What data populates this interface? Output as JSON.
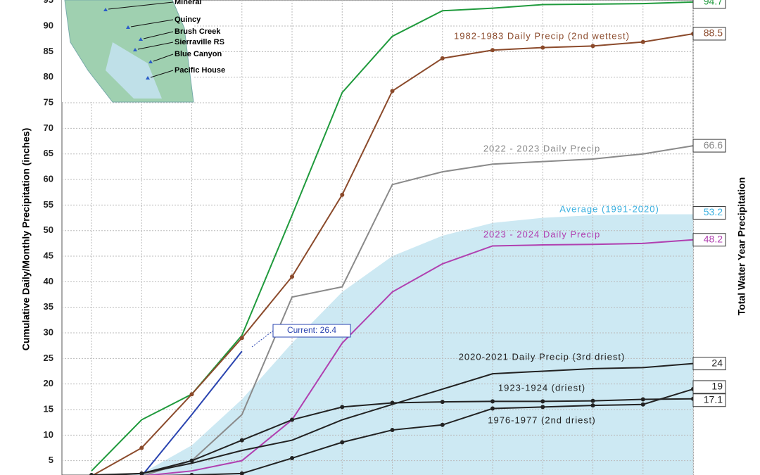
{
  "chart_data": {
    "type": "line",
    "y_label": "Cumulative Daily/Monthly Precipitation (inches)",
    "y2_label": "Total Water Year Precipitation",
    "x": [
      0,
      1,
      2,
      3,
      4,
      5,
      6,
      7,
      8,
      9,
      10,
      11,
      12
    ],
    "xlim": [
      -0.59,
      12
    ],
    "xticks": [
      0,
      1,
      2,
      3,
      4,
      5,
      6,
      7,
      8,
      9,
      10,
      11,
      12
    ],
    "ylim": [
      2.2,
      95.1
    ],
    "yticks": [
      5,
      10,
      15,
      20,
      25,
      30,
      35,
      40,
      45,
      50,
      55,
      60,
      65,
      70,
      75,
      80,
      85,
      90,
      95
    ],
    "grid": true,
    "area": {
      "name": "Average (1991-2020)",
      "color": "#3ab0e0",
      "fill": "#cde9f3",
      "values": [
        2,
        2.5,
        8,
        17,
        28,
        38,
        45,
        49,
        51.5,
        52.5,
        53,
        53.2,
        53.2
      ]
    },
    "series": [
      {
        "color": "#1f9a3c",
        "values": [
          3,
          13,
          18,
          29.5,
          53,
          77,
          88,
          93,
          93.5,
          94.2,
          94.3,
          94.4,
          94.7
        ]
      },
      {
        "name": "1982-1983 Daily Precip (2nd wettest)",
        "color": "#8b4a2b",
        "marker": true,
        "values": [
          2,
          7.5,
          18,
          29,
          41,
          57,
          77.3,
          83.7,
          85.3,
          85.8,
          86.1,
          86.9,
          88.5
        ]
      },
      {
        "name": "2022 - 2023 Daily Precip",
        "color": "#8a8a8a",
        "values": [
          null,
          2,
          5,
          14,
          37,
          39,
          59,
          61.5,
          63,
          63.5,
          64,
          65,
          66.6
        ]
      },
      {
        "name": "2023 - 2024 Daily Precip",
        "color": "#b040b0",
        "values": [
          null,
          2,
          3,
          5,
          13,
          28,
          38,
          43.5,
          47,
          47.2,
          47.3,
          47.5,
          48.2
        ]
      },
      {
        "color": "#2a44b0",
        "values": [
          null,
          2,
          14,
          26.4,
          null,
          null,
          null,
          null,
          null,
          null,
          null,
          null,
          null
        ]
      },
      {
        "name": "2020-2021 Daily Precip (3rd driest)",
        "color": "#222222",
        "values": [
          2,
          2.5,
          4.5,
          7,
          9,
          13,
          16,
          19,
          22,
          22.5,
          23,
          23.2,
          24.0
        ]
      },
      {
        "name": "1923-1924 (driest)",
        "color": "#222222",
        "marker": true,
        "values": [
          2.2,
          2.5,
          5,
          9,
          13,
          15.5,
          16.3,
          16.5,
          16.6,
          16.6,
          16.7,
          17,
          17.1
        ]
      },
      {
        "name": "1976-1977 (2nd driest)",
        "color": "#222222",
        "marker": true,
        "values": [
          2,
          2,
          2.2,
          2.5,
          5.5,
          8.6,
          11,
          12,
          15.2,
          15.5,
          15.8,
          16,
          19.0
        ]
      }
    ],
    "current_label": "Current: 26.4",
    "stations": [
      "Mineral",
      "Quincy",
      "Brush Creek",
      "Sierraville RS",
      "Blue Canyon",
      "Pacific House"
    ]
  }
}
